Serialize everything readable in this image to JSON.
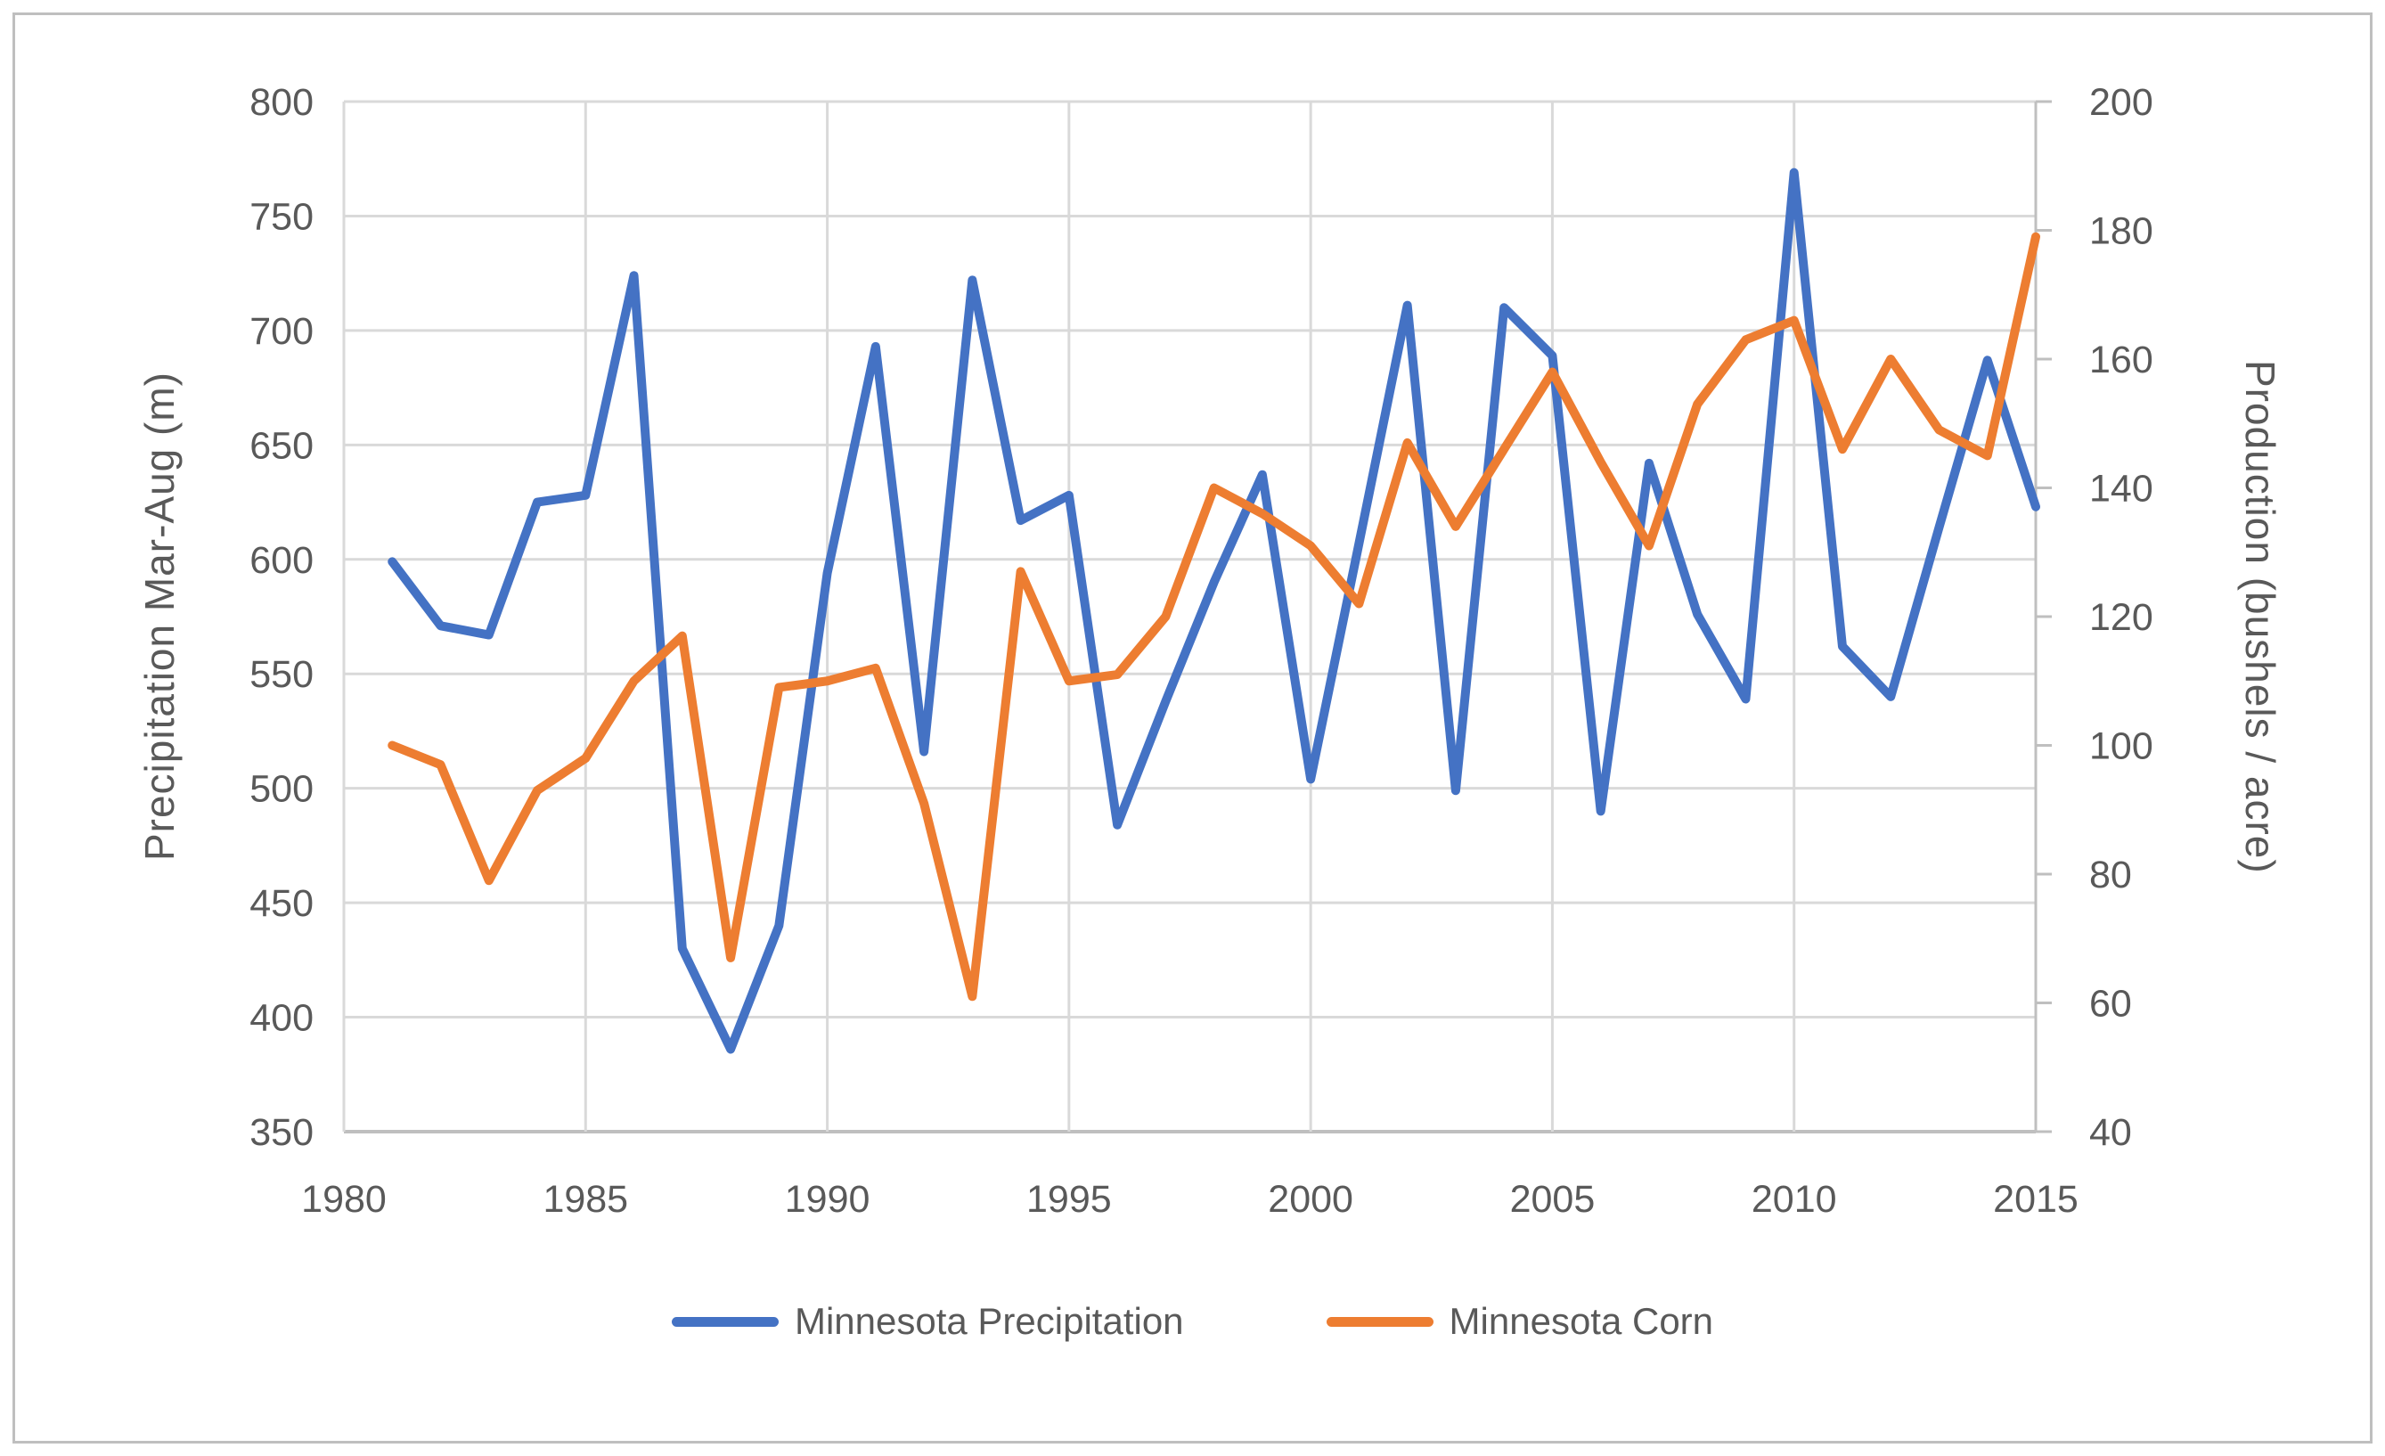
{
  "frame": {
    "border_color": "#BFBFBF",
    "background": "#FFFFFF"
  },
  "chart_data": {
    "type": "line",
    "title": "",
    "x": [
      1981,
      1982,
      1983,
      1984,
      1985,
      1986,
      1987,
      1988,
      1989,
      1990,
      1991,
      1992,
      1993,
      1994,
      1995,
      1996,
      1997,
      1998,
      1999,
      2000,
      2001,
      2002,
      2003,
      2004,
      2005,
      2006,
      2007,
      2008,
      2009,
      2010,
      2011,
      2012,
      2013,
      2014,
      2015
    ],
    "series": [
      {
        "name": "Minnesota Precipitation",
        "color": "#4472C4",
        "axis": "left",
        "values": [
          599,
          571,
          567,
          625,
          628,
          724,
          430,
          386,
          440,
          594,
          693,
          516,
          722,
          617,
          628,
          484,
          538,
          590,
          637,
          504,
          607,
          711,
          499,
          710,
          689,
          490,
          642,
          576,
          539,
          769,
          562,
          540,
          614,
          687,
          623
        ]
      },
      {
        "name": "Minnesota Corn",
        "color": "#ED7D31",
        "axis": "right",
        "values": [
          100,
          97,
          79,
          93,
          98,
          110,
          117,
          67,
          109,
          110,
          112,
          91,
          61,
          127,
          110,
          111,
          120,
          140,
          136,
          131,
          122,
          147,
          134,
          146,
          158,
          144,
          131,
          153,
          163,
          166,
          146,
          160,
          149,
          145,
          179
        ]
      }
    ],
    "left_axis": {
      "title": "Precipitation  Mar-Aug (m)",
      "min": 350,
      "max": 800,
      "step": 50,
      "tick_values": [
        350,
        400,
        450,
        500,
        550,
        600,
        650,
        700,
        750,
        800
      ],
      "tick_labels": [
        "350",
        "400",
        "450",
        "500",
        "550",
        "600",
        "650",
        "700",
        "750",
        "800"
      ]
    },
    "right_axis": {
      "title": "Production  (bushels / acre)",
      "min": 40,
      "max": 200,
      "step": 20,
      "tick_values": [
        40,
        60,
        80,
        100,
        120,
        140,
        160,
        180,
        200
      ],
      "tick_labels": [
        "40",
        "60",
        "80",
        "100",
        "120",
        "140",
        "160",
        "180",
        "200"
      ]
    },
    "x_axis": {
      "min": 1980,
      "max": 2015,
      "step": 5,
      "tick_values": [
        1980,
        1985,
        1990,
        1995,
        2000,
        2005,
        2010,
        2015
      ],
      "tick_labels": [
        "1980",
        "1985",
        "1990",
        "1995",
        "2000",
        "2005",
        "2010",
        "2015"
      ]
    },
    "legend": {
      "position": "bottom",
      "entries": [
        "Minnesota Precipitation",
        "Minnesota Corn"
      ]
    },
    "style": {
      "grid_color": "#D9D9D9",
      "axis_color": "#BFBFBF",
      "text_color": "#595959",
      "line_width": 10,
      "grid_on": true,
      "ylim_left": [
        350,
        800
      ],
      "ylim_right": [
        40,
        200
      ],
      "xlim": [
        1980,
        2015
      ]
    }
  }
}
